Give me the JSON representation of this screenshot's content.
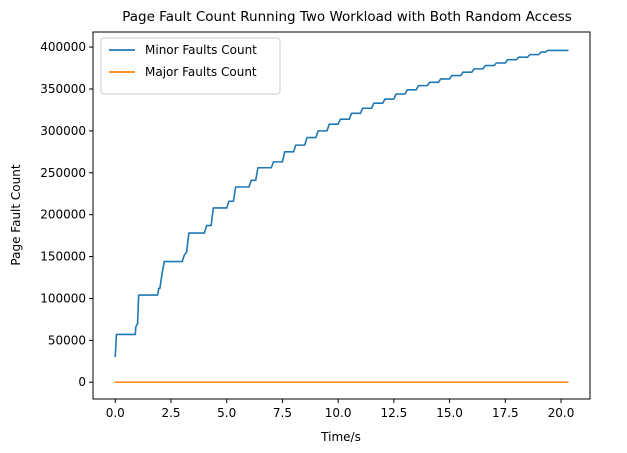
{
  "chart_data": {
    "type": "line",
    "title": "Page Fault Count Running Two Workload with Both Random Access",
    "xlabel": "Time/s",
    "ylabel": "Page Fault Count",
    "xlim": [
      -1.0,
      21.3
    ],
    "ylim": [
      -20000,
      418000
    ],
    "xticks": [
      0.0,
      2.5,
      5.0,
      7.5,
      10.0,
      12.5,
      15.0,
      17.5,
      20.0
    ],
    "xtick_labels": [
      "0.0",
      "2.5",
      "5.0",
      "7.5",
      "10.0",
      "12.5",
      "15.0",
      "17.5",
      "20.0"
    ],
    "yticks": [
      0,
      50000,
      100000,
      150000,
      200000,
      250000,
      300000,
      350000,
      400000
    ],
    "ytick_labels": [
      "0",
      "50000",
      "100000",
      "150000",
      "200000",
      "250000",
      "300000",
      "350000",
      "400000"
    ],
    "grid": false,
    "legend_placement": "top-left",
    "series": [
      {
        "name": "Minor Faults Count",
        "color": "#1f77b4",
        "x": [
          0.0,
          0.05,
          0.1,
          0.9,
          0.92,
          1.0,
          1.05,
          1.1,
          1.9,
          1.95,
          2.0,
          2.1,
          2.2,
          2.3,
          2.4,
          3.0,
          3.1,
          3.2,
          3.3,
          3.4,
          4.0,
          4.1,
          4.3,
          4.4,
          5.0,
          5.1,
          5.3,
          5.4,
          6.0,
          6.1,
          6.3,
          6.4,
          7.0,
          7.1,
          7.5,
          7.6,
          8.0,
          8.1,
          8.5,
          8.6,
          9.0,
          9.1,
          9.5,
          9.6,
          10.0,
          10.1,
          10.5,
          10.6,
          11.0,
          11.1,
          11.5,
          11.6,
          12.0,
          12.1,
          12.5,
          12.6,
          13.0,
          13.1,
          13.5,
          13.6,
          14.0,
          14.1,
          14.5,
          14.6,
          15.0,
          15.1,
          15.5,
          15.6,
          16.0,
          16.1,
          16.5,
          16.6,
          17.0,
          17.1,
          17.5,
          17.6,
          18.0,
          18.1,
          18.5,
          18.6,
          19.0,
          19.1,
          19.3,
          19.4,
          20.3
        ],
        "y": [
          31000,
          57000,
          57000,
          57000,
          66000,
          70000,
          104000,
          104000,
          104000,
          112000,
          112000,
          130000,
          144000,
          144000,
          144000,
          144000,
          152000,
          155000,
          178000,
          178000,
          178000,
          187000,
          187000,
          208000,
          208000,
          216000,
          216000,
          233000,
          233000,
          241000,
          241000,
          256000,
          256000,
          263000,
          263000,
          275000,
          275000,
          283000,
          283000,
          292000,
          292000,
          300000,
          300000,
          308000,
          308000,
          314000,
          314000,
          321000,
          321000,
          327000,
          327000,
          333000,
          333000,
          338000,
          338000,
          344000,
          344000,
          349000,
          349000,
          354000,
          354000,
          358000,
          358000,
          362000,
          362000,
          366000,
          366000,
          370000,
          370000,
          374000,
          374000,
          378000,
          378000,
          381000,
          381000,
          385000,
          385000,
          388000,
          388000,
          391000,
          391000,
          394000,
          394000,
          396000,
          396000
        ]
      },
      {
        "name": "Major Faults Count",
        "color": "#ff7f0e",
        "x": [
          0.0,
          20.3
        ],
        "y": [
          0,
          0
        ]
      }
    ]
  }
}
